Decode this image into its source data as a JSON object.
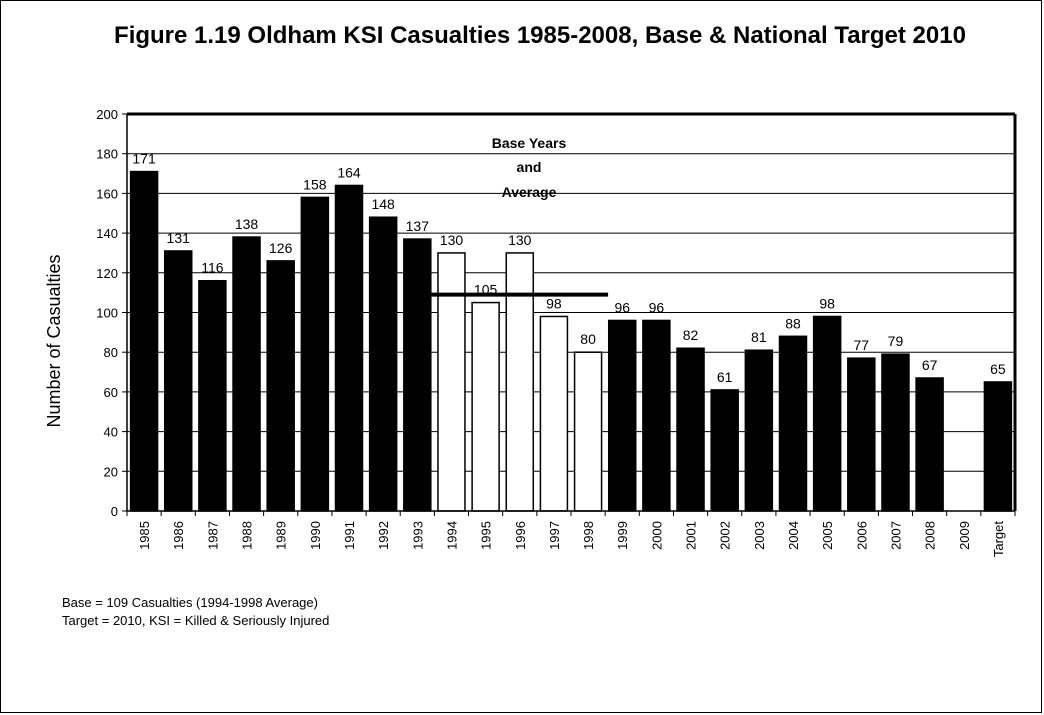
{
  "chart_data": {
    "type": "bar",
    "title": "Figure 1.19 Oldham KSI Casualties 1985-2008, Base & National Target 2010",
    "ylabel": "Number of Casualties",
    "xlabel": "",
    "ylim": [
      0,
      200
    ],
    "yticks": [
      0,
      20,
      40,
      60,
      80,
      100,
      120,
      140,
      160,
      180,
      200
    ],
    "grid": true,
    "categories": [
      "1985",
      "1986",
      "1987",
      "1988",
      "1989",
      "1990",
      "1991",
      "1992",
      "1993",
      "1994",
      "1995",
      "1996",
      "1997",
      "1998",
      "1999",
      "2000",
      "2001",
      "2002",
      "2003",
      "2004",
      "2005",
      "2006",
      "2007",
      "2008",
      "2009",
      "Target"
    ],
    "values": [
      171,
      131,
      116,
      138,
      126,
      158,
      164,
      148,
      137,
      130,
      105,
      130,
      98,
      80,
      96,
      96,
      82,
      61,
      81,
      88,
      98,
      77,
      79,
      67,
      0,
      65
    ],
    "value_labels": [
      "171",
      "131",
      "116",
      "138",
      "126",
      "158",
      "164",
      "148",
      "137",
      "130",
      "105",
      "130",
      "98",
      "80",
      "96",
      "96",
      "82",
      "61",
      "81",
      "88",
      "98",
      "77",
      "79",
      "67",
      "",
      "65"
    ],
    "base_years": [
      "1994",
      "1995",
      "1996",
      "1997",
      "1998"
    ],
    "base_average": 109,
    "annotation": [
      "Base Years",
      "and",
      "Average"
    ],
    "colors": {
      "bar": "#000000",
      "base_bar": "#ffffff",
      "average_line": "#000000",
      "grid": "#000000"
    }
  },
  "notes": [
    "Base = 109 Casualties (1994-1998 Average)",
    "Target = 2010, KSI = Killed & Seriously Injured"
  ]
}
